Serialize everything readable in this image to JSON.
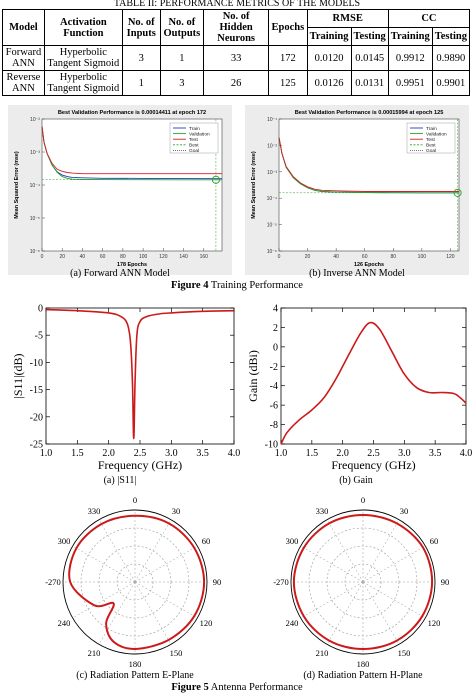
{
  "table": {
    "title": "TABLE II: PERFORMANCE METRICS OF THE MODELS",
    "headers": {
      "model": "Model",
      "activation": "Activation Function",
      "inputs": "No. of Inputs",
      "outputs": "No. of Outputs",
      "hidden": "No. of Hidden Neurons",
      "epochs": "Epochs",
      "rmse": "RMSE",
      "cc": "CC",
      "training": "Training",
      "testing": "Testing"
    },
    "rows": [
      {
        "model": "Forward ANN",
        "activation": "Hyperbolic Tangent Sigmoid",
        "inputs": "3",
        "outputs": "1",
        "hidden": "33",
        "epochs": "172",
        "rmse_train": "0.0120",
        "rmse_test": "0.0145",
        "cc_train": "0.9912",
        "cc_test": "0.9890"
      },
      {
        "model": "Reverse ANN",
        "activation": "Hyperbolic Tangent Sigmoid",
        "inputs": "1",
        "outputs": "3",
        "hidden": "26",
        "epochs": "125",
        "rmse_train": "0.0126",
        "rmse_test": "0.0131",
        "cc_train": "0.9951",
        "cc_test": "0.9901"
      }
    ]
  },
  "figure4": {
    "caption_label": "Figure 4",
    "caption_text": " Training Performance",
    "sub_a": "(a) Forward ANN Model",
    "sub_b": "(b) Inverse ANN Model"
  },
  "figure5": {
    "caption_label": "Figure 5",
    "caption_text": " Antenna Performance",
    "sub_a": "(a) |S11|",
    "sub_b": "(b) Gain",
    "sub_c": "(c) Radiation Pattern E-Plane",
    "sub_d": "(d) Radiation Pattern H-Plane"
  },
  "colors": {
    "train": "#1f3cc4",
    "validation": "#2aa02a",
    "test": "#d42020",
    "curve": "#cc1a1a"
  },
  "chart_data": [
    {
      "type": "line",
      "title": "Best Validation Performance is 0.00014411 at epoch 172",
      "xlabel": "178 Epochs",
      "ylabel": "Mean Squared Error (mse)",
      "xlim": [
        0,
        178
      ],
      "xticks": [
        "0",
        "20",
        "40",
        "60",
        "80",
        "100",
        "120",
        "140",
        "160"
      ],
      "yticks": [
        "10⁻²",
        "10⁻³",
        "10⁻⁴",
        "10⁻⁵",
        "10⁻⁶"
      ],
      "legend": [
        "Train",
        "Validation",
        "Test",
        "Best",
        "Goal"
      ],
      "legend_position": "top-right",
      "yscale": "log",
      "ylim": [
        1e-06,
        0.01
      ],
      "series": [
        {
          "name": "Train",
          "x": [
            0,
            2,
            5,
            10,
            15,
            20,
            25,
            30,
            40,
            60,
            100,
            140,
            178
          ],
          "y": [
            0.006,
            0.002,
            0.0009,
            0.0004,
            0.00025,
            0.0002,
            0.00018,
            0.00017,
            0.000165,
            0.00016,
            0.000158,
            0.000156,
            0.000155
          ]
        },
        {
          "name": "Validation",
          "x": [
            0,
            2,
            5,
            10,
            15,
            20,
            25,
            30,
            40,
            60,
            100,
            140,
            178
          ],
          "y": [
            0.006,
            0.002,
            0.0009,
            0.0004,
            0.00024,
            0.00018,
            0.00016,
            0.00015,
            0.000148,
            0.000146,
            0.000145,
            0.000144,
            0.000144
          ]
        },
        {
          "name": "Test",
          "x": [
            0,
            2,
            5,
            10,
            15,
            20,
            25,
            30,
            40,
            60,
            100,
            140,
            178
          ],
          "y": [
            0.006,
            0.002,
            0.0009,
            0.00045,
            0.0003,
            0.00026,
            0.00024,
            0.00023,
            0.00022,
            0.00022,
            0.00022,
            0.00022,
            0.00022
          ]
        }
      ],
      "best_epoch": 172,
      "best_value": 0.00014411
    },
    {
      "type": "line",
      "title": "Best Validation Performance is 0.00015994 at epoch 125",
      "xlabel": "126 Epochs",
      "ylabel": "Mean Squared Error (mse)",
      "xlim": [
        0,
        126
      ],
      "xticks": [
        "0",
        "20",
        "40",
        "60",
        "80",
        "100",
        "120"
      ],
      "yticks": [
        "10⁻¹",
        "10⁻²",
        "10⁻³",
        "10⁻⁴",
        "10⁻⁵",
        "10⁻⁶"
      ],
      "legend": [
        "Train",
        "Validation",
        "Test",
        "Best",
        "Goal"
      ],
      "legend_position": "top-right",
      "yscale": "log",
      "ylim": [
        1e-06,
        0.1
      ],
      "series": [
        {
          "name": "Train",
          "x": [
            0,
            2,
            5,
            10,
            15,
            20,
            25,
            30,
            40,
            60,
            80,
            100,
            126
          ],
          "y": [
            0.02,
            0.005,
            0.0015,
            0.0006,
            0.00035,
            0.00025,
            0.0002,
            0.00018,
            0.00017,
            0.000165,
            0.000162,
            0.00016,
            0.00016
          ]
        },
        {
          "name": "Validation",
          "x": [
            0,
            2,
            5,
            10,
            15,
            20,
            25,
            30,
            40,
            60,
            80,
            100,
            126
          ],
          "y": [
            0.02,
            0.005,
            0.0015,
            0.0006,
            0.00035,
            0.00025,
            0.0002,
            0.00018,
            0.00017,
            0.000165,
            0.000162,
            0.00016,
            0.00016
          ]
        },
        {
          "name": "Test",
          "x": [
            0,
            2,
            5,
            10,
            15,
            20,
            25,
            30,
            40,
            60,
            80,
            100,
            126
          ],
          "y": [
            0.02,
            0.005,
            0.0016,
            0.00065,
            0.00038,
            0.00027,
            0.00022,
            0.0002,
            0.00019,
            0.00018,
            0.00018,
            0.00018,
            0.00018
          ]
        }
      ],
      "best_epoch": 125,
      "best_value": 0.00015994
    },
    {
      "type": "line",
      "xlabel": "Frequency (GHz)",
      "ylabel": "|S11|(dB)",
      "xlim": [
        1.0,
        4.0
      ],
      "ylim": [
        -25,
        0
      ],
      "xticks": [
        "1.0",
        "1.5",
        "2.0",
        "2.5",
        "3.0",
        "3.5",
        "4.0"
      ],
      "yticks": [
        "0",
        "-5",
        "-10",
        "-15",
        "-20",
        "-25"
      ],
      "series": [
        {
          "x": [
            1.0,
            1.5,
            2.0,
            2.2,
            2.3,
            2.35,
            2.38,
            2.4,
            2.42,
            2.45,
            2.5,
            2.6,
            2.8,
            3.0,
            3.5,
            4.0
          ],
          "y": [
            -0.3,
            -0.5,
            -0.9,
            -1.6,
            -3.0,
            -6.5,
            -14.0,
            -24.0,
            -14.0,
            -5.0,
            -2.5,
            -1.6,
            -1.1,
            -0.9,
            -0.6,
            -0.5
          ]
        }
      ]
    },
    {
      "type": "line",
      "xlabel": "Frequency (GHz)",
      "ylabel": "Gain (dBi)",
      "xlim": [
        1.0,
        4.0
      ],
      "ylim": [
        -10,
        4
      ],
      "xticks": [
        "1.0",
        "1.5",
        "2.0",
        "2.5",
        "3.0",
        "3.5",
        "4.0"
      ],
      "yticks": [
        "4",
        "2",
        "0",
        "-2",
        "-4",
        "-6",
        "-8",
        "-10"
      ],
      "series": [
        {
          "x": [
            1.0,
            1.1,
            1.3,
            1.5,
            1.7,
            1.9,
            2.1,
            2.3,
            2.45,
            2.6,
            2.8,
            3.0,
            3.2,
            3.4,
            3.6,
            3.8,
            3.9,
            4.0
          ],
          "y": [
            -10,
            -8.8,
            -7.5,
            -6.5,
            -5.2,
            -3.2,
            -0.8,
            1.5,
            2.5,
            1.8,
            -0.5,
            -2.8,
            -4.2,
            -4.7,
            -4.7,
            -4.8,
            -5.2,
            -5.8
          ]
        }
      ]
    },
    {
      "type": "polar",
      "angle_labels": [
        "0",
        "30",
        "60",
        "90",
        "120",
        "150",
        "180",
        "210",
        "240",
        "-270",
        "300",
        "330"
      ],
      "theta_deg": [
        0,
        30,
        60,
        90,
        120,
        150,
        180,
        200,
        215,
        225,
        240,
        270,
        300,
        330,
        360
      ],
      "r": [
        0.92,
        0.94,
        0.95,
        0.96,
        0.95,
        0.93,
        0.93,
        0.88,
        0.7,
        0.42,
        0.65,
        0.9,
        0.94,
        0.93,
        0.92
      ]
    },
    {
      "type": "polar",
      "angle_labels": [
        "0",
        "30",
        "60",
        "90",
        "120",
        "150",
        "180",
        "210",
        "240",
        "-270",
        "300",
        "330"
      ],
      "theta_deg": [
        0,
        30,
        60,
        90,
        120,
        150,
        180,
        210,
        240,
        270,
        300,
        330,
        360
      ],
      "r": [
        0.93,
        0.94,
        0.96,
        0.96,
        0.95,
        0.94,
        0.93,
        0.94,
        0.95,
        0.96,
        0.95,
        0.94,
        0.93
      ]
    }
  ]
}
